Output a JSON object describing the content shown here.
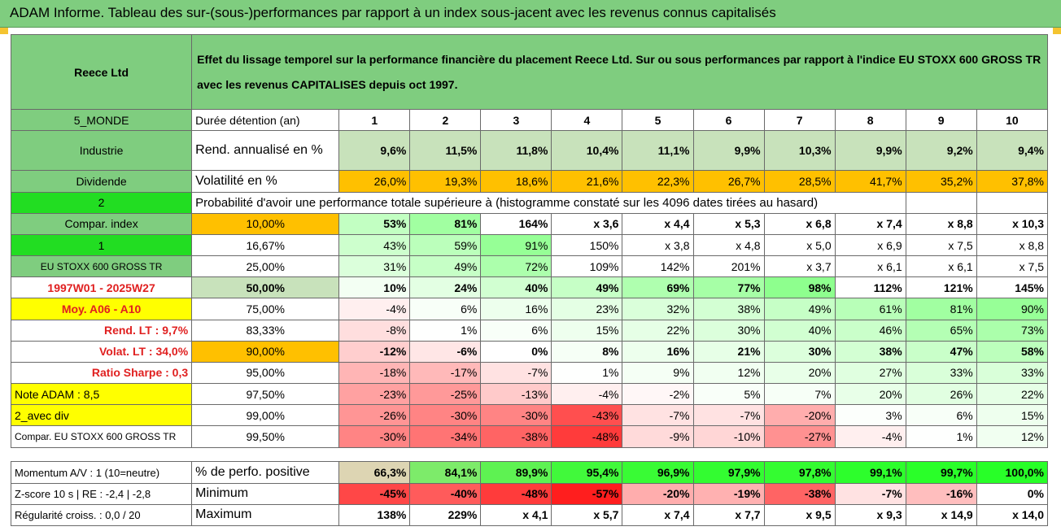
{
  "title": "ADAM Informe. Tableau des sur-(sous-)performances par rapport à un index sous-jacent avec les revenus connus capitalisés",
  "header": {
    "company": "Reece Ltd",
    "description": "Effet du lissage temporel sur la performance financière du placement Reece Ltd. Sur ou sous performances par rapport à l'indice EU STOXX 600 GROSS TR avec les revenus CAPITALISES depuis oct 1997."
  },
  "info": {
    "region": "5_MONDE",
    "sector": "Industrie",
    "dividend": "Dividende",
    "count": "2",
    "compar_label": "Compar. index",
    "flag": "1",
    "index_name": "EU STOXX 600 GROSS TR",
    "period": "1997W01 - 2025W27",
    "moy": "Moy. A06 - A10",
    "rend_lt": "Rend. LT :   9,7%",
    "volat_lt": "Volat. LT :   34,0%",
    "sharpe": "Ratio Sharpe :   0,3",
    "note": "Note ADAM : 8,5",
    "avec_div": "2_avec div",
    "compar_full": "Compar. EU STOXX 600 GROSS TR"
  },
  "rows": {
    "duree": {
      "label": "Durée détention (an)",
      "values": [
        "1",
        "2",
        "3",
        "4",
        "5",
        "6",
        "7",
        "8",
        "9",
        "10"
      ]
    },
    "rend": {
      "label": "Rend. annualisé en %",
      "values": [
        "9,6%",
        "11,5%",
        "11,8%",
        "10,4%",
        "11,1%",
        "9,9%",
        "10,3%",
        "9,9%",
        "9,2%",
        "9,4%"
      ]
    },
    "volat": {
      "label": "Volatilité en %",
      "values": [
        "26,0%",
        "19,3%",
        "18,6%",
        "21,6%",
        "22,3%",
        "26,7%",
        "28,5%",
        "41,7%",
        "35,2%",
        "37,8%"
      ]
    },
    "proba": {
      "label": "Probabilité d'avoir une performance totale supérieure à (histogramme constaté sur les 4096 dates tirées au hasard)"
    }
  },
  "pct_rows": [
    {
      "p": "10,00%",
      "v": [
        "53%",
        "81%",
        "164%",
        "x 3,6",
        "x 4,4",
        "x 5,3",
        "x 6,8",
        "x 7,4",
        "x 8,8",
        "x 10,3"
      ]
    },
    {
      "p": "16,67%",
      "v": [
        "43%",
        "59%",
        "91%",
        "150%",
        "x 3,8",
        "x 4,8",
        "x 5,0",
        "x 6,9",
        "x 7,5",
        "x 8,8"
      ]
    },
    {
      "p": "25,00%",
      "v": [
        "31%",
        "49%",
        "72%",
        "109%",
        "142%",
        "201%",
        "x 3,7",
        "x 6,1",
        "x 6,1",
        "x 7,5"
      ]
    },
    {
      "p": "50,00%",
      "v": [
        "10%",
        "24%",
        "40%",
        "49%",
        "69%",
        "77%",
        "98%",
        "112%",
        "121%",
        "145%"
      ]
    },
    {
      "p": "75,00%",
      "v": [
        "-4%",
        "6%",
        "16%",
        "23%",
        "32%",
        "38%",
        "49%",
        "61%",
        "81%",
        "90%"
      ]
    },
    {
      "p": "83,33%",
      "v": [
        "-8%",
        "1%",
        "6%",
        "15%",
        "22%",
        "30%",
        "40%",
        "46%",
        "65%",
        "73%"
      ]
    },
    {
      "p": "90,00%",
      "v": [
        "-12%",
        "-6%",
        "0%",
        "8%",
        "16%",
        "21%",
        "30%",
        "38%",
        "47%",
        "58%"
      ]
    },
    {
      "p": "95,00%",
      "v": [
        "-18%",
        "-17%",
        "-7%",
        "1%",
        "9%",
        "12%",
        "20%",
        "27%",
        "33%",
        "33%"
      ]
    },
    {
      "p": "97,50%",
      "v": [
        "-23%",
        "-25%",
        "-13%",
        "-4%",
        "-2%",
        "5%",
        "7%",
        "20%",
        "26%",
        "22%"
      ]
    },
    {
      "p": "99,00%",
      "v": [
        "-26%",
        "-30%",
        "-30%",
        "-43%",
        "-7%",
        "-7%",
        "-20%",
        "3%",
        "6%",
        "15%"
      ]
    },
    {
      "p": "99,50%",
      "v": [
        "-30%",
        "-34%",
        "-38%",
        "-48%",
        "-9%",
        "-10%",
        "-27%",
        "-4%",
        "1%",
        "12%"
      ]
    }
  ],
  "footer": [
    {
      "left": "Momentum A/V : 1 (10=neutre)",
      "label": "% de perfo. positive",
      "v": [
        "66,3%",
        "84,1%",
        "89,9%",
        "95,4%",
        "96,9%",
        "97,9%",
        "97,8%",
        "99,1%",
        "99,7%",
        "100,0%"
      ]
    },
    {
      "left": "Z-score 10 s | RE : -2,4 | -2,8",
      "label": "Minimum",
      "v": [
        "-45%",
        "-40%",
        "-48%",
        "-57%",
        "-20%",
        "-19%",
        "-38%",
        "-7%",
        "-16%",
        "0%"
      ]
    },
    {
      "left": "Régularité croiss. : 0,0 / 20",
      "label": "Maximum",
      "v": [
        "138%",
        "229%",
        "x 4,1",
        "x 5,7",
        "x 7,4",
        "x 7,7",
        "x 9,5",
        "x 9,3",
        "x 14,9",
        "x 14,0"
      ]
    }
  ],
  "colors": {
    "header_green": "#7fcd7f",
    "light_green": "#c8e2bb",
    "bright_green": "#22dd22",
    "yellow": "#ffff00",
    "orange": "#ffc000",
    "red_text": "#e02020"
  }
}
